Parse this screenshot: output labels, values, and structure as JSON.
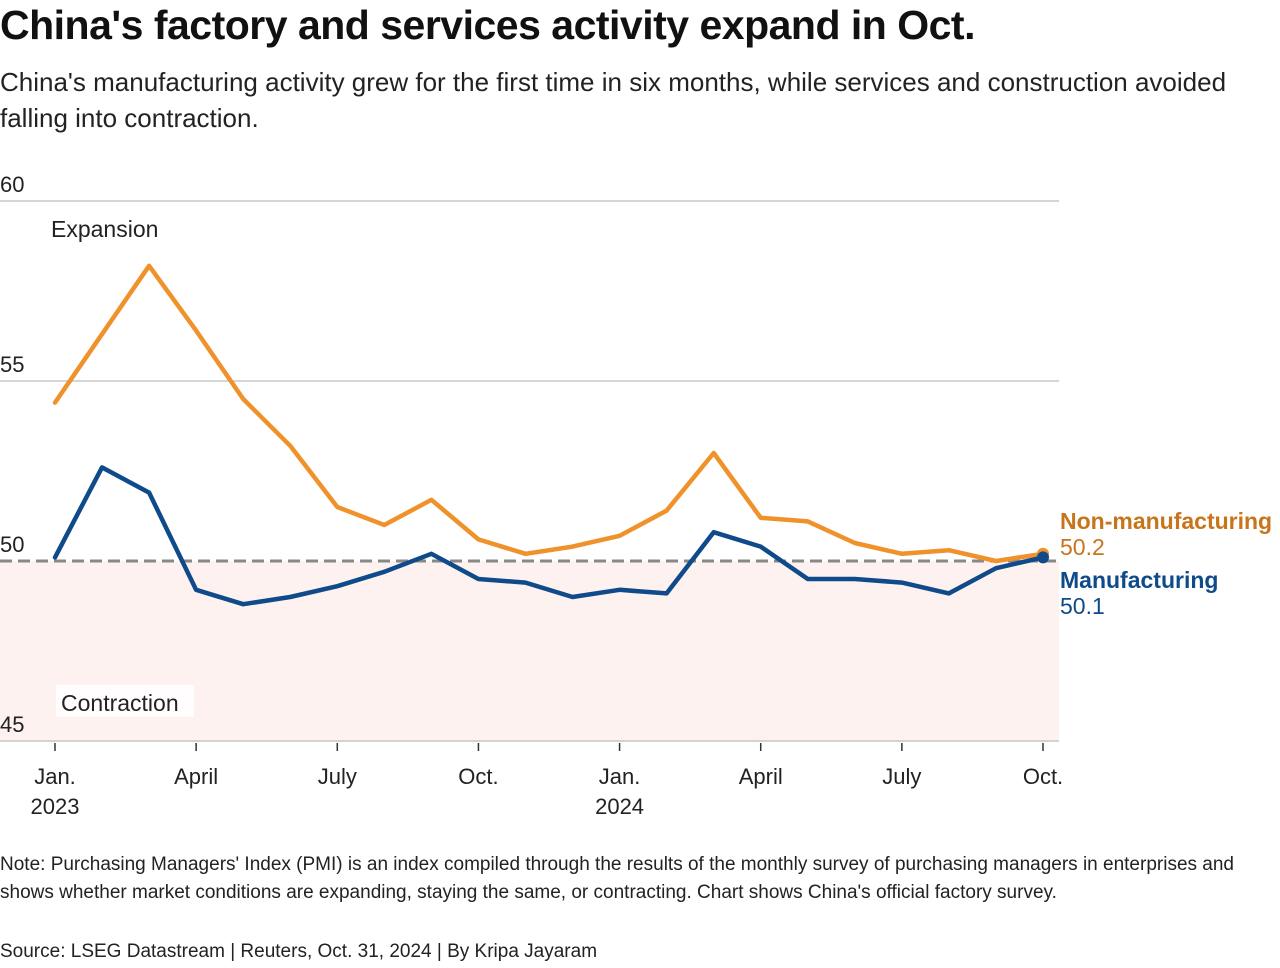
{
  "header": {
    "title": "China's factory and services activity expand in Oct.",
    "subtitle": "China's manufacturing activity grew for the first time in six months, while services and construction avoided falling into contraction."
  },
  "footer": {
    "note": "Note: Purchasing Managers' Index (PMI) is an index compiled through the results of the monthly survey of purchasing managers in enterprises and shows whether market conditions are expanding, staying the same, or contracting. Chart shows China's official factory survey.",
    "source": "Source: LSEG Datastream | Reuters, Oct. 31, 2024 | By Kripa Jayaram"
  },
  "chart_data": {
    "type": "line",
    "title": "China's factory and services activity expand in Oct.",
    "xlabel": "",
    "ylabel": "",
    "ylim": [
      45,
      60
    ],
    "yticks": [
      45,
      50,
      55,
      60
    ],
    "grid": true,
    "reference_line": {
      "value": 50,
      "style": "dashed",
      "color": "#888888"
    },
    "zones": [
      {
        "label": "Expansion",
        "from": 50,
        "to": 60,
        "color": "#ffffff"
      },
      {
        "label": "Contraction",
        "from": 45,
        "to": 50,
        "color": "#fdf2f0"
      }
    ],
    "x": [
      "2023-01",
      "2023-02",
      "2023-03",
      "2023-04",
      "2023-05",
      "2023-06",
      "2023-07",
      "2023-08",
      "2023-09",
      "2023-10",
      "2023-11",
      "2023-12",
      "2024-01",
      "2024-02",
      "2024-03",
      "2024-04",
      "2024-05",
      "2024-06",
      "2024-07",
      "2024-08",
      "2024-09",
      "2024-10"
    ],
    "xticks": [
      {
        "index": 0,
        "label": "Jan.",
        "sublabel": "2023"
      },
      {
        "index": 3,
        "label": "April",
        "sublabel": ""
      },
      {
        "index": 6,
        "label": "July",
        "sublabel": ""
      },
      {
        "index": 9,
        "label": "Oct.",
        "sublabel": ""
      },
      {
        "index": 12,
        "label": "Jan.",
        "sublabel": "2024"
      },
      {
        "index": 15,
        "label": "April",
        "sublabel": ""
      },
      {
        "index": 18,
        "label": "July",
        "sublabel": ""
      },
      {
        "index": 21,
        "label": "Oct.",
        "sublabel": ""
      }
    ],
    "series": [
      {
        "name": "Non-manufacturing",
        "color": "#f0922b",
        "label_color": "#c8741b",
        "last_value_label": "50.2",
        "values": [
          54.4,
          56.3,
          58.2,
          56.4,
          54.5,
          53.2,
          51.5,
          51.0,
          51.7,
          50.6,
          50.2,
          50.4,
          50.7,
          51.4,
          53.0,
          51.2,
          51.1,
          50.5,
          50.2,
          50.3,
          50.0,
          50.2
        ]
      },
      {
        "name": "Manufacturing",
        "color": "#0f4a8a",
        "label_color": "#0f4a8a",
        "last_value_label": "50.1",
        "values": [
          50.1,
          52.6,
          51.9,
          49.2,
          48.8,
          49.0,
          49.3,
          49.7,
          50.2,
          49.5,
          49.4,
          49.0,
          49.2,
          49.1,
          50.8,
          50.4,
          49.5,
          49.5,
          49.4,
          49.1,
          49.8,
          50.1
        ]
      }
    ],
    "legend": "inline-right"
  }
}
